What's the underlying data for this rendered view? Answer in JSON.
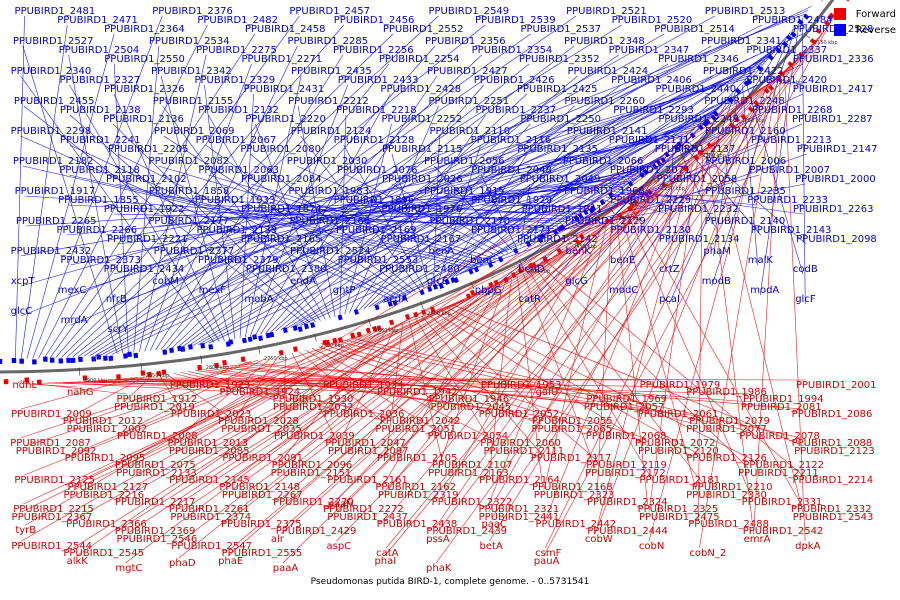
{
  "legend": {
    "forward_label": "Forward",
    "reverse_label": "Reverse",
    "forward_color": "#ee0000",
    "reverse_color": "#0000ee"
  },
  "caption": "Pseudomonas putida BIRD-1, complete genome. - 0..5731541",
  "ticks": [
    "2150 kbp",
    "2200 kbp",
    "2250 kbp",
    "2300 kbp",
    "2350 kbp",
    "2400 kbp",
    "2450 kbp",
    "2500 kbp",
    "2550 kbp",
    "2600 kbp",
    "2650 kbp",
    "2700 kbp",
    "2750 kbp",
    "2800 kbp",
    "2850 kbp",
    "2900 kbp"
  ],
  "forward_genes": [
    "ndhL",
    "nahG",
    "PPUBIRD1_1912",
    "PPUBIRD1_1923",
    "PPUBIRD1_1924",
    "PPUBIRD1_1930",
    "PPUBIRD1_1934",
    "PPUBIRD1_1942",
    "PPUBIRD1_1946",
    "PPUBIRD1_1953",
    "galU",
    "PPUBIRD1_1969",
    "PPUBIRD1_1979",
    "PPUBIRD1_1986",
    "PPUBIRD1_1994",
    "PPUBIRD1_2001",
    "PPUBIRD1_2009",
    "PPUBIRD1_2012",
    "PPUBIRD1_2019",
    "PPUBIRD1_2023",
    "PPUBIRD1_2028",
    "PPUBIRD1_2032",
    "PPUBIRD1_2036",
    "PPUBIRD1_2042",
    "PPUBIRD1_2045",
    "PPUBIRD1_2052",
    "PPUBIRD1_2055",
    "PPUBIRD1_2057",
    "PPUBIRD1_2061",
    "PPUBIRD1_2079",
    "PPUBIRD1_2081",
    "PPUBIRD1_2086",
    "PPUBIRD1_2087",
    "PPUBIRD1_2002",
    "PPUBIRD1_2008",
    "PPUBIRD1_2013",
    "PPUBIRD1_2035",
    "PPUBIRD1_2039",
    "PPUBIRD1_2047",
    "PPUBIRD1_2051",
    "PPUBIRD1_2054",
    "PPUBIRD1_2060",
    "PPUBIRD1_2065",
    "PPUBIRD1_2068",
    "PPUBIRD1_2072",
    "PPUBIRD1_2077",
    "PPUBIRD1_2078",
    "PPUBIRD1_2088",
    "PPUBIRD1_2092",
    "PPUBIRD1_2095",
    "PPUBIRD1_2075",
    "PPUBIRD1_2085",
    "PPUBIRD1_2091",
    "PPUBIRD1_2096",
    "PPUBIRD1_2097",
    "PPUBIRD1_2105",
    "PPUBIRD1_2107",
    "PPUBIRD1_2111",
    "PPUBIRD1_2117",
    "PPUBIRD1_2119",
    "PPUBIRD1_2120",
    "PPUBIRD1_2126",
    "PPUBIRD1_2122",
    "PPUBIRD1_2123",
    "PPUBIRD1_2125",
    "PPUBIRD1_2127",
    "PPUBIRD1_2133",
    "PPUBIRD1_2145",
    "PPUBIRD1_2148",
    "PPUBIRD1_2151",
    "PPUBIRD1_2161",
    "PPUBIRD1_2162",
    "PPUBIRD1_2163",
    "PPUBIRD1_2164",
    "PPUBIRD1_2168",
    "PPUBIRD1_2172",
    "PPUBIRD1_2181",
    "PPUBIRD1_2210",
    "PPUBIRD1_2211",
    "PPUBIRD1_2214",
    "PPUBIRD1_2215",
    "PPUBIRD1_2216",
    "PPUBIRD1_2217",
    "PPUBIRD1_2261",
    "PPUBIRD1_2267",
    "PPUBIRD1_2270",
    "PPUBIRD1_2272",
    "PPUBIRD1_2319",
    "PPUBIRD1_2322",
    "PPUBIRD1_2321",
    "PPUBIRD1_2323",
    "PPUBIRD1_2324",
    "PPUBIRD1_2325",
    "PPUBIRD1_2330",
    "PPUBIRD1_2331",
    "PPUBIRD1_2332",
    "PPUBIRD1_2367",
    "PPUBIRD1_2366",
    "PPUBIRD1_2369",
    "PPUBIRD1_2374",
    "PPUBIRD1_2375",
    "PPUBIRD1_2429",
    "PPUBIRD1_2437",
    "PPUBIRD1_2438",
    "PPUBIRD1_2439",
    "PPUBIRD1_2441",
    "PPUBIRD1_2442",
    "PPUBIRD1_2444",
    "PPUBIRD1_2475",
    "PPUBIRD1_2488",
    "PPUBIRD1_2542",
    "PPUBIRD1_2543",
    "PPUBIRD1_2544",
    "PPUBIRD1_2545",
    "PPUBIRD1_2546",
    "PPUBIRD1_2547",
    "PPUBIRD1_2555",
    "alr",
    "aspC",
    "catA",
    "pssA",
    "betA",
    "csmF",
    "cobW",
    "cobN",
    "cobN_2",
    "emrA",
    "dpkA",
    "tyrB",
    "alkK",
    "mgtC",
    "phaD",
    "phaE",
    "paaA",
    "paaH",
    "phaI",
    "phaK",
    "paaC",
    "pauA"
  ],
  "reverse_genes": [
    "PPUBIRD1_2481",
    "PPUBIRD1_2471",
    "PPUBIRD1_2364",
    "PPUBIRD1_2376",
    "PPUBIRD1_2482",
    "PPUBIRD1_2458",
    "PPUBIRD1_2457",
    "PPUBIRD1_2456",
    "PPUBIRD1_2552",
    "PPUBIRD1_2549",
    "PPUBIRD1_2539",
    "PPUBIRD1_2537",
    "PPUBIRD1_2521",
    "PPUBIRD1_2520",
    "PPUBIRD1_2514",
    "PPUBIRD1_2513",
    "PPUBIRD1_2484",
    "PPUBIRD1_2528",
    "PPUBIRD1_2527",
    "PPUBIRD1_2504",
    "PPUBIRD1_2550",
    "PPUBIRD1_2534",
    "PPUBIRD1_2275",
    "PPUBIRD1_2271",
    "PPUBIRD1_2285",
    "PPUBIRD1_2256",
    "PPUBIRD1_2254",
    "PPUBIRD1_2356",
    "PPUBIRD1_2354",
    "PPUBIRD1_2352",
    "PPUBIRD1_2348",
    "PPUBIRD1_2347",
    "PPUBIRD1_2346",
    "PPUBIRD1_2341",
    "PPUBIRD1_2337",
    "PPUBIRD1_2336",
    "PPUBIRD1_2340",
    "PPUBIRD1_2327",
    "PPUBIRD1_2326",
    "PPUBIRD1_2342",
    "PPUBIRD1_2329",
    "PPUBIRD1_2431",
    "PPUBIRD1_2435",
    "PPUBIRD1_2433",
    "PPUBIRD1_2428",
    "PPUBIRD1_2427",
    "PPUBIRD1_2426",
    "PPUBIRD1_2425",
    "PPUBIRD1_2424",
    "PPUBIRD1_2406",
    "PPUBIRD1_2440",
    "PPUBIRD1_2422",
    "PPUBIRD1_2420",
    "PPUBIRD1_2417",
    "PPUBIRD1_2455",
    "PPUBIRD1_2138",
    "PPUBIRD1_2136",
    "PPUBIRD1_2155",
    "PPUBIRD1_2132",
    "PPUBIRD1_2220",
    "PPUBIRD1_2212",
    "PPUBIRD1_2218",
    "PPUBIRD1_2252",
    "PPUBIRD1_2251",
    "PPUBIRD1_2237",
    "PPUBIRD1_2250",
    "PPUBIRD1_2260",
    "PPUBIRD1_2293",
    "PPUBIRD1_2249",
    "PPUBIRD1_2248",
    "PPUBIRD1_2268",
    "PPUBIRD1_2287",
    "PPUBIRD1_2298",
    "PPUBIRD1_2241",
    "PPUBIRD1_2205",
    "PPUBIRD1_2069",
    "PPUBIRD1_2067",
    "PPUBIRD1_2080",
    "PPUBIRD1_2124",
    "PPUBIRD1_2128",
    "PPUBIRD1_2115",
    "PPUBIRD1_2110",
    "PPUBIRD1_2116",
    "PPUBIRD1_2135",
    "PPUBIRD1_2141",
    "PPUBIRD1_2131",
    "PPUBIRD1_2137",
    "PPUBIRD1_2160",
    "PPUBIRD1_2213",
    "PPUBIRD1_2147",
    "PPUBIRD1_2182",
    "PPUBIRD1_2118",
    "PPUBIRD1_2102",
    "PPUBIRD1_2082",
    "PPUBIRD1_2063",
    "PPUBIRD1_2084",
    "PPUBIRD1_2030",
    "PPUBIRD1_2076",
    "PPUBIRD1_2026",
    "PPUBIRD1_2056",
    "PPUBIRD1_2048",
    "PPUBIRD1_2049",
    "PPUBIRD1_2066",
    "PPUBIRD1_2071",
    "PPUBIRD1_2058",
    "PPUBIRD1_2006",
    "PPUBIRD1_2007",
    "PPUBIRD1_2000",
    "PPUBIRD1_1917",
    "PPUBIRD1_1855",
    "PPUBIRD1_1922",
    "PPUBIRD1_1858",
    "PPUBIRD1_1933",
    "PPUBIRD1_1874",
    "PPUBIRD1_1983",
    "PPUBIRD1_1896",
    "PPUBIRD1_1976",
    "PPUBIRD1_1915",
    "PPUBIRD1_1929",
    "PPUBIRD1_1941",
    "PPUBIRD1_1968",
    "PPUBIRD1_2229",
    "PPUBIRD1_2232",
    "PPUBIRD1_2235",
    "PPUBIRD1_2233",
    "PPUBIRD1_2263",
    "PPUBIRD1_2265",
    "PPUBIRD1_2266",
    "PPUBIRD1_2221",
    "PPUBIRD1_2177",
    "PPUBIRD1_2139",
    "PPUBIRD1_2165",
    "PPUBIRD1_2166",
    "PPUBIRD1_2169",
    "PPUBIRD1_2167",
    "PPUBIRD1_2170",
    "PPUBIRD1_2171",
    "PPUBIRD1_2142",
    "PPUBIRD1_2129",
    "PPUBIRD1_2130",
    "PPUBIRD1_2134",
    "PPUBIRD1_2140",
    "PPUBIRD1_2143",
    "PPUBIRD1_2098",
    "PPUBIRD1_2432",
    "PPUBIRD1_2373",
    "PPUBIRD1_2434",
    "PPUBIRD1_2377",
    "PPUBIRD1_2379",
    "PPUBIRD1_2380",
    "PPUBIRD1_2524",
    "PPUBIRD1_2553",
    "PPUBIRD1_2480",
    "benA",
    "benC",
    "benD",
    "benK",
    "benE",
    "crtZ",
    "phaM",
    "malK",
    "codB",
    "xcpT",
    "mexC",
    "nfrB",
    "cobM",
    "mexF",
    "mobA",
    "endA",
    "gntP",
    "acdA",
    "glcE",
    "pbpG",
    "catR",
    "glcG",
    "modC",
    "pcaI",
    "modB",
    "modA",
    "glcF",
    "glcC",
    "mrdA",
    "scrY"
  ]
}
